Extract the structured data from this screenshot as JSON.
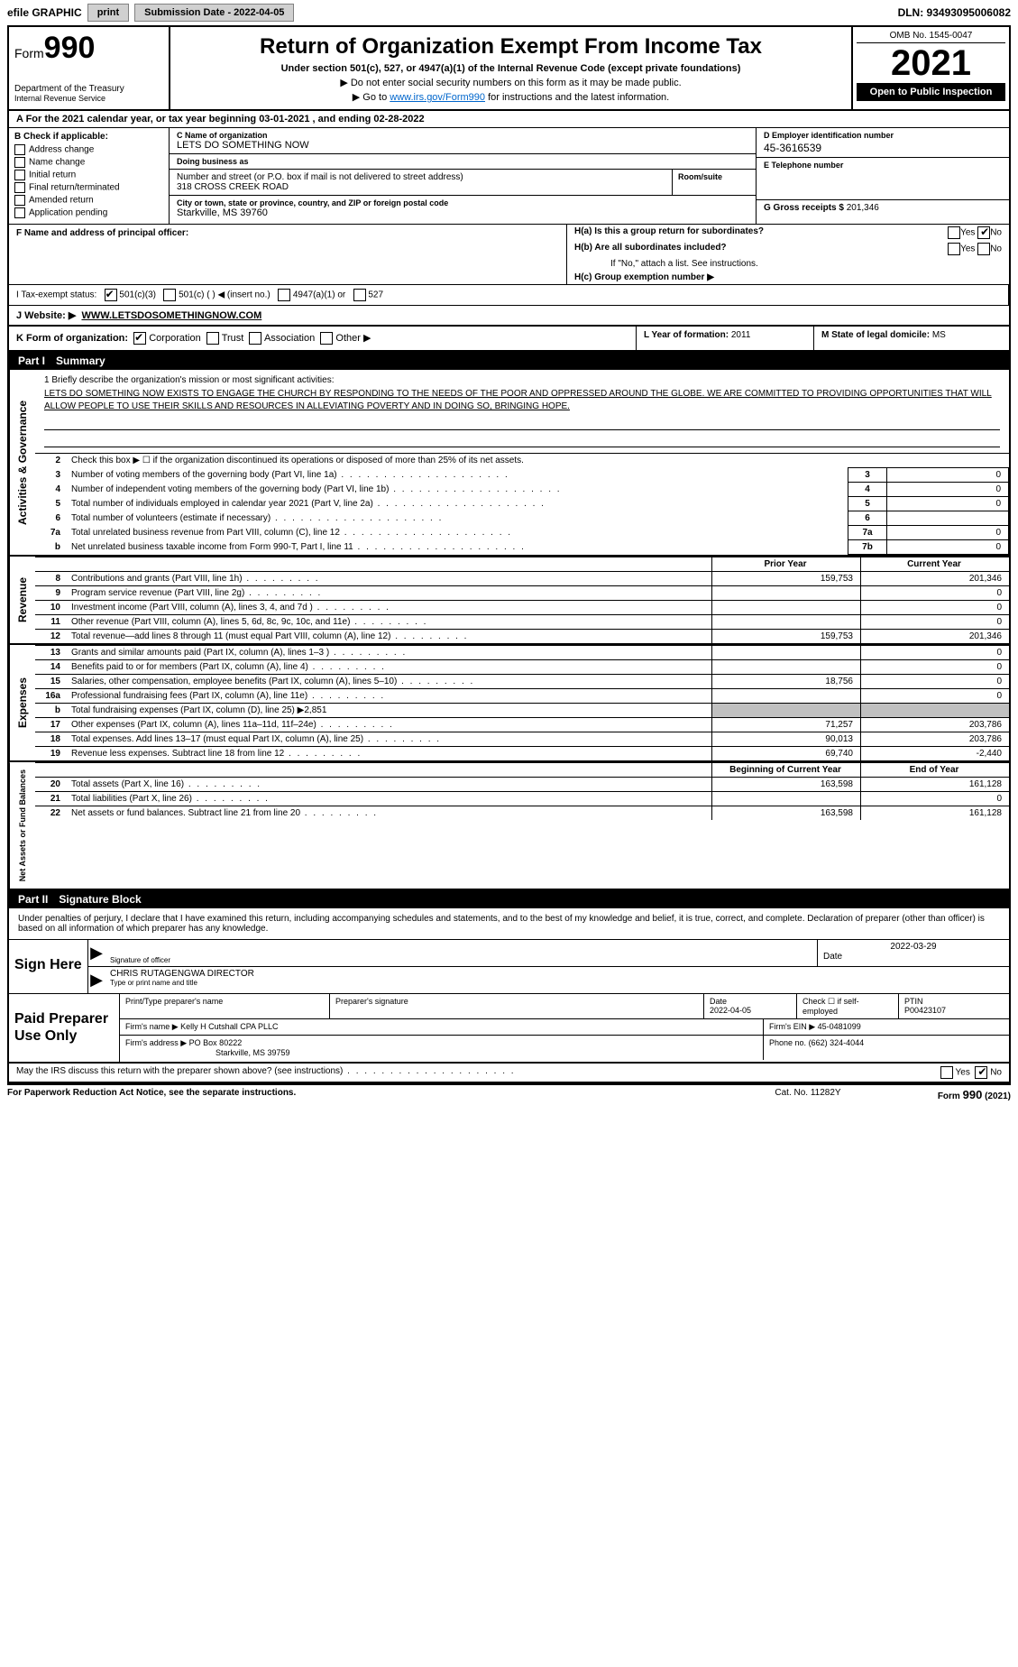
{
  "topbar": {
    "efile_label": "efile GRAPHIC",
    "print_btn": "print",
    "submission_btn": "Submission Date - 2022-04-05",
    "dln": "DLN: 93493095006082"
  },
  "header": {
    "form_word": "Form",
    "form_num": "990",
    "dept": "Department of the Treasury",
    "irs": "Internal Revenue Service",
    "title": "Return of Organization Exempt From Income Tax",
    "sub": "Under section 501(c), 527, or 4947(a)(1) of the Internal Revenue Code (except private foundations)",
    "note1": "▶ Do not enter social security numbers on this form as it may be made public.",
    "note2_pre": "▶ Go to ",
    "note2_link": "www.irs.gov/Form990",
    "note2_post": " for instructions and the latest information.",
    "omb": "OMB No. 1545-0047",
    "year": "2021",
    "open": "Open to Public Inspection"
  },
  "period": "A For the 2021 calendar year, or tax year beginning 03-01-2021    , and ending 02-28-2022",
  "secB": {
    "hdr": "B Check if applicable:",
    "items": [
      "Address change",
      "Name change",
      "Initial return",
      "Final return/terminated",
      "Amended return",
      "Application pending"
    ]
  },
  "secC": {
    "name_lbl": "C Name of organization",
    "name": "LETS DO SOMETHING NOW",
    "dba_lbl": "Doing business as",
    "dba": "",
    "street_lbl": "Number and street (or P.O. box if mail is not delivered to street address)",
    "room_lbl": "Room/suite",
    "street": "318 CROSS CREEK ROAD",
    "city_lbl": "City or town, state or province, country, and ZIP or foreign postal code",
    "city": "Starkville, MS  39760"
  },
  "secD": {
    "ein_lbl": "D Employer identification number",
    "ein": "45-3616539",
    "phone_lbl": "E Telephone number",
    "phone": "",
    "gross_lbl": "G Gross receipts $",
    "gross": "201,346"
  },
  "secF": {
    "lbl": "F  Name and address of principal officer:",
    "val": ""
  },
  "secH": {
    "a_lbl": "H(a)  Is this a group return for subordinates?",
    "a_yes": "Yes",
    "a_no": "No",
    "b_lbl": "H(b)  Are all subordinates included?",
    "b_yes": "Yes",
    "b_no": "No",
    "b_note": "If \"No,\" attach a list. See instructions.",
    "c_lbl": "H(c)  Group exemption number ▶"
  },
  "secI": {
    "lbl": "I   Tax-exempt status:",
    "opts": [
      "501(c)(3)",
      "501(c) (  ) ◀ (insert no.)",
      "4947(a)(1) or",
      "527"
    ]
  },
  "secJ": {
    "lbl": "J   Website: ▶",
    "val": "WWW.LETSDOSOMETHINGNOW.COM"
  },
  "secK": {
    "lbl": "K Form of organization:",
    "opts": [
      "Corporation",
      "Trust",
      "Association",
      "Other ▶"
    ]
  },
  "secL": {
    "lbl": "L Year of formation:",
    "val": "2011"
  },
  "secM": {
    "lbl": "M State of legal domicile:",
    "val": "MS"
  },
  "part1": {
    "num": "Part I",
    "title": "Summary"
  },
  "mission": {
    "lbl": "1  Briefly describe the organization's mission or most significant activities:",
    "txt": "LETS DO SOMETHING NOW EXISTS TO ENGAGE THE CHURCH BY RESPONDING TO THE NEEDS OF THE POOR AND OPPRESSED AROUND THE GLOBE. WE ARE COMMITTED TO PROVIDING OPPORTUNITIES THAT WILL ALLOW PEOPLE TO USE THEIR SKILLS AND RESOURCES IN ALLEVIATING POVERTY AND IN DOING SO, BRINGING HOPE."
  },
  "gov_lines": {
    "l2": "Check this box ▶ ☐  if the organization discontinued its operations or disposed of more than 25% of its net assets.",
    "l3": "Number of voting members of the governing body (Part VI, line 1a)",
    "l4": "Number of independent voting members of the governing body (Part VI, line 1b)",
    "l5": "Total number of individuals employed in calendar year 2021 (Part V, line 2a)",
    "l6": "Total number of volunteers (estimate if necessary)",
    "l7a": "Total unrelated business revenue from Part VIII, column (C), line 12",
    "l7b": "Net unrelated business taxable income from Form 990-T, Part I, line 11"
  },
  "gov_vals": {
    "v3": "0",
    "v4": "0",
    "v5": "0",
    "v6": "",
    "v7a": "0",
    "v7b": "0"
  },
  "fin_hdr": {
    "prior": "Prior Year",
    "curr": "Current Year"
  },
  "revenue": [
    {
      "n": "8",
      "d": "Contributions and grants (Part VIII, line 1h)",
      "p": "159,753",
      "c": "201,346"
    },
    {
      "n": "9",
      "d": "Program service revenue (Part VIII, line 2g)",
      "p": "",
      "c": "0"
    },
    {
      "n": "10",
      "d": "Investment income (Part VIII, column (A), lines 3, 4, and 7d )",
      "p": "",
      "c": "0"
    },
    {
      "n": "11",
      "d": "Other revenue (Part VIII, column (A), lines 5, 6d, 8c, 9c, 10c, and 11e)",
      "p": "",
      "c": "0"
    },
    {
      "n": "12",
      "d": "Total revenue—add lines 8 through 11 (must equal Part VIII, column (A), line 12)",
      "p": "159,753",
      "c": "201,346"
    }
  ],
  "expenses": [
    {
      "n": "13",
      "d": "Grants and similar amounts paid (Part IX, column (A), lines 1–3 )",
      "p": "",
      "c": "0"
    },
    {
      "n": "14",
      "d": "Benefits paid to or for members (Part IX, column (A), line 4)",
      "p": "",
      "c": "0"
    },
    {
      "n": "15",
      "d": "Salaries, other compensation, employee benefits (Part IX, column (A), lines 5–10)",
      "p": "18,756",
      "c": "0"
    },
    {
      "n": "16a",
      "d": "Professional fundraising fees (Part IX, column (A), line 11e)",
      "p": "",
      "c": "0"
    },
    {
      "n": "b",
      "d": "Total fundraising expenses (Part IX, column (D), line 25) ▶2,851",
      "p": "SHADE",
      "c": "SHADE"
    },
    {
      "n": "17",
      "d": "Other expenses (Part IX, column (A), lines 11a–11d, 11f–24e)",
      "p": "71,257",
      "c": "203,786"
    },
    {
      "n": "18",
      "d": "Total expenses. Add lines 13–17 (must equal Part IX, column (A), line 25)",
      "p": "90,013",
      "c": "203,786"
    },
    {
      "n": "19",
      "d": "Revenue less expenses. Subtract line 18 from line 12",
      "p": "69,740",
      "c": "-2,440"
    }
  ],
  "netassets_hdr": {
    "prior": "Beginning of Current Year",
    "curr": "End of Year"
  },
  "netassets": [
    {
      "n": "20",
      "d": "Total assets (Part X, line 16)",
      "p": "163,598",
      "c": "161,128"
    },
    {
      "n": "21",
      "d": "Total liabilities (Part X, line 26)",
      "p": "",
      "c": "0"
    },
    {
      "n": "22",
      "d": "Net assets or fund balances. Subtract line 21 from line 20",
      "p": "163,598",
      "c": "161,128"
    }
  ],
  "vert": {
    "gov": "Activities & Governance",
    "rev": "Revenue",
    "exp": "Expenses",
    "net": "Net Assets or Fund Balances"
  },
  "part2": {
    "num": "Part II",
    "title": "Signature Block"
  },
  "penalties": "Under penalties of perjury, I declare that I have examined this return, including accompanying schedules and statements, and to the best of my knowledge and belief, it is true, correct, and complete. Declaration of preparer (other than officer) is based on all information of which preparer has any knowledge.",
  "sign": {
    "here": "Sign Here",
    "sig_lbl": "Signature of officer",
    "date_lbl": "Date",
    "date": "2022-03-29",
    "name": "CHRIS RUTAGENGWA  DIRECTOR",
    "name_lbl": "Type or print name and title"
  },
  "prep": {
    "here": "Paid Preparer Use Only",
    "name_lbl": "Print/Type preparer's name",
    "sig_lbl": "Preparer's signature",
    "date_lbl": "Date",
    "date": "2022-04-05",
    "self_lbl": "Check ☐ if self-employed",
    "ptin_lbl": "PTIN",
    "ptin": "P00423107",
    "firm_name_lbl": "Firm's name    ▶",
    "firm_name": "Kelly H Cutshall CPA PLLC",
    "firm_ein_lbl": "Firm's EIN ▶",
    "firm_ein": "45-0481099",
    "firm_addr_lbl": "Firm's address ▶",
    "firm_addr1": "PO Box 80222",
    "firm_addr2": "Starkville, MS  39759",
    "phone_lbl": "Phone no.",
    "phone": "(662) 324-4044"
  },
  "discuss": {
    "txt": "May the IRS discuss this return with the preparer shown above? (see instructions)",
    "yes": "Yes",
    "no": "No"
  },
  "footer": {
    "l": "For Paperwork Reduction Act Notice, see the separate instructions.",
    "m": "Cat. No. 11282Y",
    "r": "Form 990 (2021)"
  }
}
